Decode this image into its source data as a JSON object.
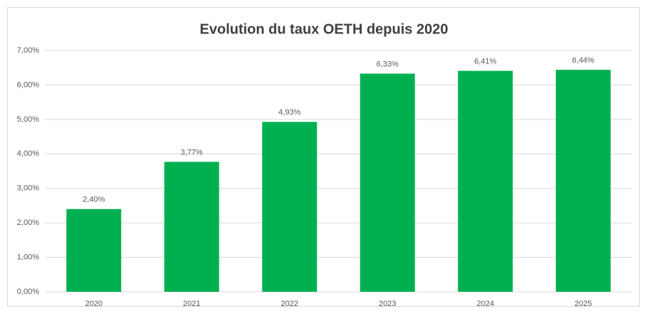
{
  "chart_data": {
    "type": "bar",
    "title": "Evolution du taux OETH depuis 2020",
    "categories": [
      "2020",
      "2021",
      "2022",
      "2023",
      "2024",
      "2025"
    ],
    "values": [
      2.4,
      3.77,
      4.93,
      6.33,
      6.41,
      6.44
    ],
    "value_labels": [
      "2,40%",
      "3,77%",
      "4,93%",
      "6,33%",
      "6,41%",
      "6,44%"
    ],
    "color": "#00b050",
    "ylim": [
      0,
      7
    ],
    "yticks": [
      {
        "value": 0,
        "label": "0,00%"
      },
      {
        "value": 1,
        "label": "1,00%"
      },
      {
        "value": 2,
        "label": "2,00%"
      },
      {
        "value": 3,
        "label": "3,00%"
      },
      {
        "value": 4,
        "label": "4,00%"
      },
      {
        "value": 5,
        "label": "5,00%"
      },
      {
        "value": 6,
        "label": "6,00%"
      },
      {
        "value": 7,
        "label": "7,00%"
      }
    ],
    "grid": true
  }
}
